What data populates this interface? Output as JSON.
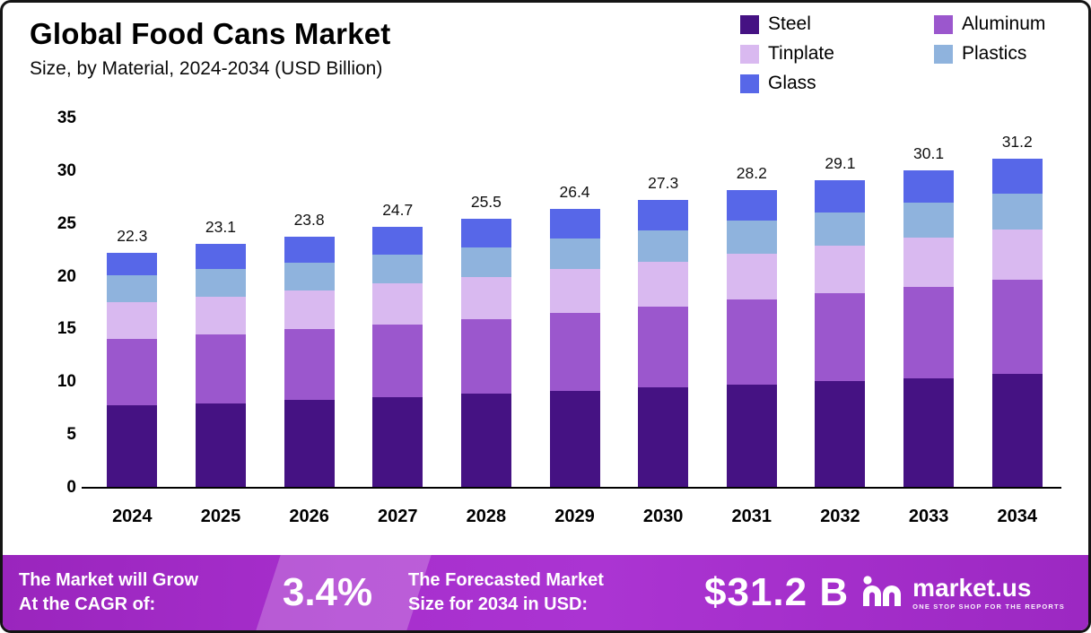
{
  "chart_data": {
    "type": "bar",
    "stacked": true,
    "title": "Global Food Cans Market",
    "subtitle": "Size, by Material, 2024-2034 (USD Billion)",
    "categories": [
      "2024",
      "2025",
      "2026",
      "2027",
      "2028",
      "2029",
      "2030",
      "2031",
      "2032",
      "2033",
      "2034"
    ],
    "series": [
      {
        "name": "Steel",
        "color": "#451283",
        "values": [
          7.8,
          8.0,
          8.3,
          8.6,
          8.9,
          9.2,
          9.5,
          9.8,
          10.1,
          10.4,
          10.8
        ]
      },
      {
        "name": "Aluminum",
        "color": "#9B57CD",
        "values": [
          6.3,
          6.5,
          6.7,
          6.9,
          7.1,
          7.4,
          7.7,
          8.0,
          8.3,
          8.6,
          8.9
        ]
      },
      {
        "name": "Tinplate",
        "color": "#D9B9F0",
        "values": [
          3.5,
          3.6,
          3.7,
          3.9,
          4.0,
          4.1,
          4.2,
          4.4,
          4.5,
          4.7,
          4.8
        ]
      },
      {
        "name": "Plastics",
        "color": "#8FB3DD",
        "values": [
          2.5,
          2.6,
          2.6,
          2.7,
          2.8,
          2.9,
          3.0,
          3.1,
          3.2,
          3.3,
          3.4
        ]
      },
      {
        "name": "Glass",
        "color": "#5767E8",
        "values": [
          2.2,
          2.4,
          2.5,
          2.6,
          2.7,
          2.8,
          2.9,
          2.9,
          3.0,
          3.1,
          3.3
        ]
      }
    ],
    "totals": [
      22.3,
      23.1,
      23.8,
      24.7,
      25.5,
      26.4,
      27.3,
      28.2,
      29.1,
      30.1,
      31.2
    ],
    "ylim": [
      0,
      35
    ],
    "yticks": [
      0,
      5,
      10,
      15,
      20,
      25,
      30,
      35
    ],
    "grid": false,
    "legend_position": "top-right"
  },
  "footer": {
    "cagr_label": "The Market will Grow\nAt the CAGR of:",
    "cagr_value": "3.4%",
    "forecast_label": "The Forecasted Market\nSize for 2034 in USD:",
    "forecast_value": "$31.2 B",
    "brand": "market.us",
    "brand_tagline": "ONE STOP SHOP FOR THE REPORTS"
  }
}
